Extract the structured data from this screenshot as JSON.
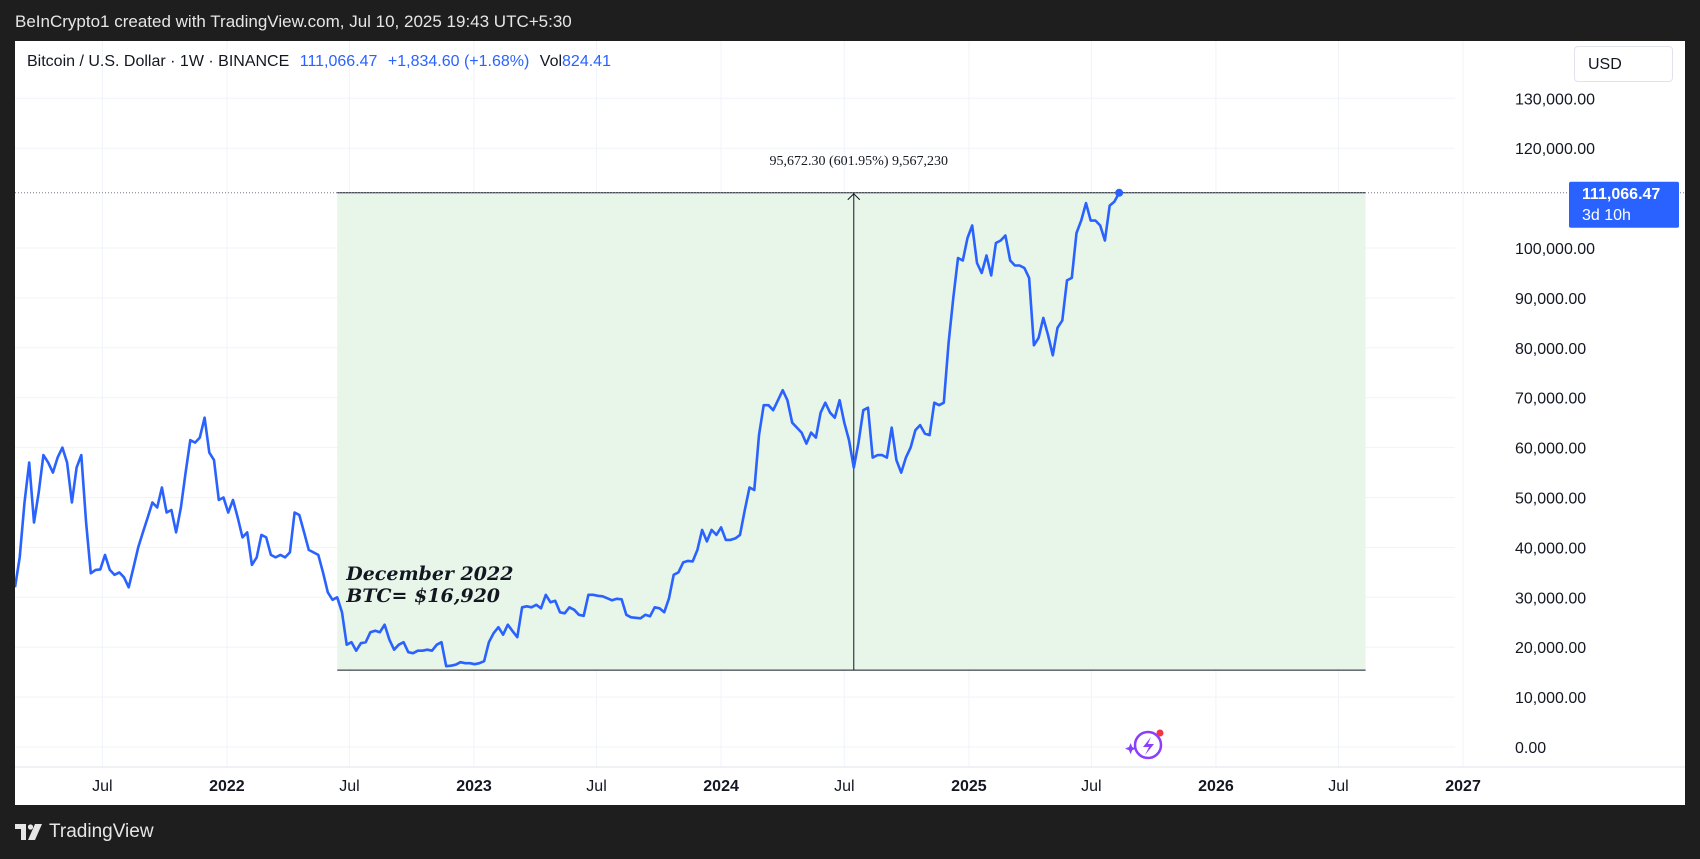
{
  "header": {
    "attribution": "BeInCrypto1 created with TradingView.com, Jul 10, 2025 19:43 UTC+5:30"
  },
  "legend": {
    "symbol": "Bitcoin / U.S. Dollar · 1W · BINANCE",
    "last": "111,066.47",
    "change": "+1,834.60 (+1.68%)",
    "vol_label": "Vol",
    "vol_value": "824.41"
  },
  "currency_button": {
    "label": "USD"
  },
  "price_tag": {
    "price": "111,066.47",
    "countdown": "3d 10h"
  },
  "measure": {
    "label": "95,672.30 (601.95%) 9,567,230"
  },
  "annotation": {
    "line1": "December 2022",
    "line2": "BTC= $16,920"
  },
  "footer": {
    "brand": "TradingView"
  },
  "colors": {
    "line": "#2962ff",
    "range_fill": "#e8f5e9",
    "price_tag": "#2962ff"
  },
  "chart_data": {
    "type": "line",
    "title": "Bitcoin / U.S. Dollar · 1W · BINANCE",
    "xlabel": "",
    "ylabel": "",
    "grid": true,
    "ylim": [
      0,
      130000
    ],
    "xlim": [
      "2021-02-22",
      "2027-03-01"
    ],
    "y_ticks": [
      {
        "v": 0,
        "label": "0.00"
      },
      {
        "v": 10000,
        "label": "10,000.00"
      },
      {
        "v": 20000,
        "label": "20,000.00"
      },
      {
        "v": 30000,
        "label": "30,000.00"
      },
      {
        "v": 40000,
        "label": "40,000.00"
      },
      {
        "v": 50000,
        "label": "50,000.00"
      },
      {
        "v": 60000,
        "label": "60,000.00"
      },
      {
        "v": 70000,
        "label": "70,000.00"
      },
      {
        "v": 80000,
        "label": "80,000.00"
      },
      {
        "v": 90000,
        "label": "90,000.00"
      },
      {
        "v": 100000,
        "label": "100,000.00"
      },
      {
        "v": 120000,
        "label": "120,000.00"
      },
      {
        "v": 130000,
        "label": "130,000.00"
      }
    ],
    "x_ticks": [
      {
        "d": "2021-07-01",
        "label": "Jul",
        "bold": false
      },
      {
        "d": "2022-01-01",
        "label": "2022",
        "bold": true
      },
      {
        "d": "2022-07-01",
        "label": "Jul",
        "bold": false
      },
      {
        "d": "2023-01-01",
        "label": "2023",
        "bold": true
      },
      {
        "d": "2023-07-01",
        "label": "Jul",
        "bold": false
      },
      {
        "d": "2024-01-01",
        "label": "2024",
        "bold": true
      },
      {
        "d": "2024-07-01",
        "label": "Jul",
        "bold": false
      },
      {
        "d": "2025-01-01",
        "label": "2025",
        "bold": true
      },
      {
        "d": "2025-07-01",
        "label": "Jul",
        "bold": false
      },
      {
        "d": "2026-01-01",
        "label": "2026",
        "bold": true
      },
      {
        "d": "2026-07-01",
        "label": "Jul",
        "bold": false
      },
      {
        "d": "2027-01-01",
        "label": "2027",
        "bold": true
      }
    ],
    "range_box": {
      "x_start": "2022-06-13",
      "x_end": "2026-08-10",
      "y_low": 15400,
      "y_high": 111066,
      "x_measure": "2024-07-15"
    },
    "series": [
      {
        "values": [
          [
            "2021-02-22",
            32000
          ],
          [
            "2021-03-01",
            38000
          ],
          [
            "2021-03-08",
            49000
          ],
          [
            "2021-03-15",
            57000
          ],
          [
            "2021-03-22",
            45000
          ],
          [
            "2021-03-29",
            51000
          ],
          [
            "2021-04-05",
            58500
          ],
          [
            "2021-04-12",
            57000
          ],
          [
            "2021-04-19",
            55000
          ],
          [
            "2021-04-26",
            58000
          ],
          [
            "2021-05-03",
            60000
          ],
          [
            "2021-05-10",
            57000
          ],
          [
            "2021-05-17",
            49000
          ],
          [
            "2021-05-24",
            56000
          ],
          [
            "2021-05-31",
            58500
          ],
          [
            "2021-06-07",
            45000
          ],
          [
            "2021-06-14",
            34800
          ],
          [
            "2021-06-21",
            35500
          ],
          [
            "2021-06-28",
            35600
          ],
          [
            "2021-07-05",
            38500
          ],
          [
            "2021-07-12",
            35500
          ],
          [
            "2021-07-19",
            34500
          ],
          [
            "2021-07-26",
            35000
          ],
          [
            "2021-08-02",
            34000
          ],
          [
            "2021-08-09",
            32000
          ],
          [
            "2021-08-16",
            36000
          ],
          [
            "2021-08-23",
            40000
          ],
          [
            "2021-08-30",
            43000
          ],
          [
            "2021-09-06",
            46000
          ],
          [
            "2021-09-13",
            49000
          ],
          [
            "2021-09-20",
            48000
          ],
          [
            "2021-09-27",
            52000
          ],
          [
            "2021-10-04",
            47000
          ],
          [
            "2021-10-11",
            47500
          ],
          [
            "2021-10-18",
            43000
          ],
          [
            "2021-10-25",
            48000
          ],
          [
            "2021-11-01",
            55000
          ],
          [
            "2021-11-08",
            61500
          ],
          [
            "2021-11-15",
            61000
          ],
          [
            "2021-11-22",
            62000
          ],
          [
            "2021-11-29",
            66000
          ],
          [
            "2021-12-06",
            59000
          ],
          [
            "2021-12-13",
            57500
          ],
          [
            "2021-12-20",
            49500
          ],
          [
            "2021-12-27",
            50000
          ],
          [
            "2022-01-03",
            47000
          ],
          [
            "2022-01-10",
            49500
          ],
          [
            "2022-01-17",
            46000
          ],
          [
            "2022-01-24",
            42000
          ],
          [
            "2022-01-31",
            43000
          ],
          [
            "2022-02-07",
            36500
          ],
          [
            "2022-02-14",
            38000
          ],
          [
            "2022-02-21",
            42500
          ],
          [
            "2022-02-28",
            42000
          ],
          [
            "2022-03-07",
            38500
          ],
          [
            "2022-03-14",
            38000
          ],
          [
            "2022-03-21",
            38500
          ],
          [
            "2022-03-28",
            38000
          ],
          [
            "2022-04-04",
            39000
          ],
          [
            "2022-04-11",
            47000
          ],
          [
            "2022-04-18",
            46500
          ],
          [
            "2022-04-25",
            43000
          ],
          [
            "2022-05-02",
            39500
          ],
          [
            "2022-05-09",
            39000
          ],
          [
            "2022-05-16",
            38500
          ],
          [
            "2022-05-23",
            35000
          ],
          [
            "2022-05-30",
            31000
          ],
          [
            "2022-06-06",
            29500
          ],
          [
            "2022-06-13",
            30000
          ],
          [
            "2022-06-20",
            27000
          ],
          [
            "2022-06-27",
            20500
          ],
          [
            "2022-07-04",
            21000
          ],
          [
            "2022-07-11",
            19300
          ],
          [
            "2022-07-18",
            20800
          ],
          [
            "2022-07-25",
            21000
          ],
          [
            "2022-08-01",
            23000
          ],
          [
            "2022-08-08",
            23300
          ],
          [
            "2022-08-15",
            23000
          ],
          [
            "2022-08-22",
            24500
          ],
          [
            "2022-08-29",
            21500
          ],
          [
            "2022-09-05",
            19500
          ],
          [
            "2022-09-12",
            20500
          ],
          [
            "2022-09-19",
            21000
          ],
          [
            "2022-09-26",
            19000
          ],
          [
            "2022-10-03",
            18800
          ],
          [
            "2022-10-10",
            19300
          ],
          [
            "2022-10-17",
            19300
          ],
          [
            "2022-10-24",
            19500
          ],
          [
            "2022-10-31",
            19300
          ],
          [
            "2022-11-07",
            20500
          ],
          [
            "2022-11-14",
            21000
          ],
          [
            "2022-11-21",
            16200
          ],
          [
            "2022-11-28",
            16300
          ],
          [
            "2022-12-05",
            16500
          ],
          [
            "2022-12-12",
            17000
          ],
          [
            "2022-12-19",
            16800
          ],
          [
            "2022-12-26",
            16800
          ],
          [
            "2023-01-02",
            16600
          ],
          [
            "2023-01-09",
            16800
          ],
          [
            "2023-01-16",
            17200
          ],
          [
            "2023-01-23",
            21000
          ],
          [
            "2023-01-30",
            22800
          ],
          [
            "2023-02-06",
            24000
          ],
          [
            "2023-02-13",
            22500
          ],
          [
            "2023-02-20",
            24500
          ],
          [
            "2023-02-27",
            23200
          ],
          [
            "2023-03-06",
            22000
          ],
          [
            "2023-03-13",
            28000
          ],
          [
            "2023-03-20",
            28200
          ],
          [
            "2023-03-27",
            28000
          ],
          [
            "2023-04-03",
            28500
          ],
          [
            "2023-04-10",
            27800
          ],
          [
            "2023-04-17",
            30500
          ],
          [
            "2023-04-24",
            29000
          ],
          [
            "2023-05-01",
            29300
          ],
          [
            "2023-05-08",
            27000
          ],
          [
            "2023-05-15",
            26800
          ],
          [
            "2023-05-22",
            28000
          ],
          [
            "2023-05-29",
            27500
          ],
          [
            "2023-06-05",
            26500
          ],
          [
            "2023-06-12",
            26300
          ],
          [
            "2023-06-19",
            30500
          ],
          [
            "2023-06-26",
            30500
          ],
          [
            "2023-07-03",
            30300
          ],
          [
            "2023-07-10",
            30200
          ],
          [
            "2023-07-17",
            29800
          ],
          [
            "2023-07-24",
            29400
          ],
          [
            "2023-07-31",
            29700
          ],
          [
            "2023-08-07",
            29600
          ],
          [
            "2023-08-14",
            26500
          ],
          [
            "2023-08-21",
            26000
          ],
          [
            "2023-08-28",
            25900
          ],
          [
            "2023-09-04",
            25800
          ],
          [
            "2023-09-11",
            26500
          ],
          [
            "2023-09-18",
            26200
          ],
          [
            "2023-09-25",
            28000
          ],
          [
            "2023-10-02",
            27800
          ],
          [
            "2023-10-09",
            27000
          ],
          [
            "2023-10-16",
            29800
          ],
          [
            "2023-10-23",
            34500
          ],
          [
            "2023-10-30",
            35000
          ],
          [
            "2023-11-06",
            37000
          ],
          [
            "2023-11-13",
            37300
          ],
          [
            "2023-11-20",
            37200
          ],
          [
            "2023-11-27",
            39500
          ],
          [
            "2023-12-04",
            43500
          ],
          [
            "2023-12-11",
            41200
          ],
          [
            "2023-12-18",
            43500
          ],
          [
            "2023-12-25",
            42500
          ],
          [
            "2024-01-01",
            44000
          ],
          [
            "2024-01-08",
            41500
          ],
          [
            "2024-01-15",
            41500
          ],
          [
            "2024-01-22",
            41800
          ],
          [
            "2024-01-29",
            42500
          ],
          [
            "2024-02-05",
            47500
          ],
          [
            "2024-02-12",
            52000
          ],
          [
            "2024-02-19",
            51500
          ],
          [
            "2024-02-26",
            62500
          ],
          [
            "2024-03-04",
            68500
          ],
          [
            "2024-03-11",
            68500
          ],
          [
            "2024-03-18",
            67500
          ],
          [
            "2024-03-25",
            69500
          ],
          [
            "2024-04-01",
            71500
          ],
          [
            "2024-04-08",
            69500
          ],
          [
            "2024-04-15",
            65000
          ],
          [
            "2024-04-22",
            64000
          ],
          [
            "2024-04-29",
            63000
          ],
          [
            "2024-05-06",
            60800
          ],
          [
            "2024-05-13",
            63000
          ],
          [
            "2024-05-20",
            62000
          ],
          [
            "2024-05-27",
            67000
          ],
          [
            "2024-06-03",
            69000
          ],
          [
            "2024-06-10",
            67000
          ],
          [
            "2024-06-17",
            66000
          ],
          [
            "2024-06-24",
            69500
          ],
          [
            "2024-07-01",
            65000
          ],
          [
            "2024-07-08",
            61500
          ],
          [
            "2024-07-15",
            56000
          ],
          [
            "2024-07-22",
            61000
          ],
          [
            "2024-07-29",
            67500
          ],
          [
            "2024-08-05",
            68000
          ],
          [
            "2024-08-12",
            58000
          ],
          [
            "2024-08-19",
            58500
          ],
          [
            "2024-08-26",
            58500
          ],
          [
            "2024-09-02",
            58000
          ],
          [
            "2024-09-09",
            64000
          ],
          [
            "2024-09-16",
            57500
          ],
          [
            "2024-09-23",
            55000
          ],
          [
            "2024-09-30",
            58000
          ],
          [
            "2024-10-07",
            60000
          ],
          [
            "2024-10-14",
            63500
          ],
          [
            "2024-10-21",
            64500
          ],
          [
            "2024-10-28",
            62800
          ],
          [
            "2024-11-04",
            62500
          ],
          [
            "2024-11-11",
            69000
          ],
          [
            "2024-11-18",
            68500
          ],
          [
            "2024-11-25",
            69000
          ],
          [
            "2024-12-02",
            81000
          ],
          [
            "2024-12-09",
            90000
          ],
          [
            "2024-12-16",
            98000
          ],
          [
            "2024-12-23",
            97500
          ],
          [
            "2024-12-30",
            102000
          ],
          [
            "2025-01-06",
            104500
          ],
          [
            "2025-01-13",
            97000
          ],
          [
            "2025-01-20",
            95000
          ],
          [
            "2025-01-27",
            98500
          ],
          [
            "2025-02-03",
            94500
          ],
          [
            "2025-02-10",
            101000
          ],
          [
            "2025-02-17",
            101500
          ],
          [
            "2025-02-24",
            102500
          ],
          [
            "2025-03-03",
            97500
          ],
          [
            "2025-03-10",
            96500
          ],
          [
            "2025-03-17",
            96500
          ],
          [
            "2025-03-24",
            96000
          ],
          [
            "2025-03-31",
            94000
          ],
          [
            "2025-04-07",
            80500
          ],
          [
            "2025-04-14",
            82000
          ],
          [
            "2025-04-21",
            86000
          ],
          [
            "2025-04-28",
            82500
          ],
          [
            "2025-05-05",
            78500
          ],
          [
            "2025-05-12",
            84000
          ],
          [
            "2025-05-19",
            85500
          ],
          [
            "2025-05-26",
            93500
          ],
          [
            "2025-06-02",
            94000
          ],
          [
            "2025-06-09",
            103000
          ],
          [
            "2025-06-16",
            105500
          ],
          [
            "2025-06-23",
            109000
          ],
          [
            "2025-06-30",
            105500
          ],
          [
            "2025-07-07",
            105500
          ],
          [
            "2025-07-14",
            104500
          ],
          [
            "2025-07-21",
            101500
          ],
          [
            "2025-07-28",
            108500
          ],
          [
            "2025-08-04",
            109300
          ],
          [
            "2025-08-11",
            111066
          ]
        ]
      }
    ]
  }
}
